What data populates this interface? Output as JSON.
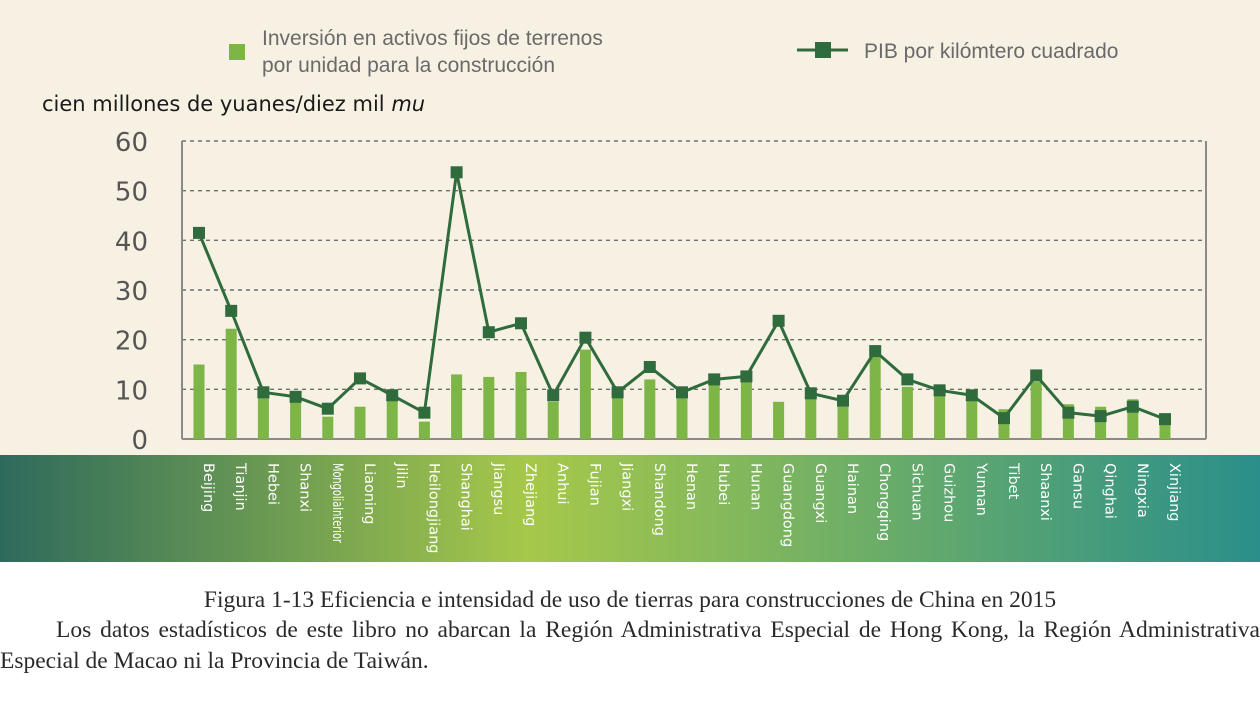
{
  "legend": {
    "bar_label_line1": "Inversión en activos fijos de terrenos",
    "bar_label_line2": "por unidad para la construcción",
    "line_label": "PIB por kilómtero cuadrado"
  },
  "unit_label_prefix": "cien millones de yuanes/diez mil ",
  "unit_label_italic": "mu",
  "caption": {
    "title": "Figura 1-13 Eficiencia e intensidad de uso de tierras para construcciones de China en 2015",
    "note": "Los datos estadísticos de este libro no abarcan la Región Administrativa Especial de Hong Kong, la Región Administrativa Especial de Macao ni la Provincia de Taiwán."
  },
  "colors": {
    "bar": "#7db547",
    "line": "#2f6b3c",
    "background": "#f7f1e3",
    "band_left": "#2e6a5c",
    "band_mid": "#a6c84a",
    "band_right": "#2a8f8a"
  },
  "chart_data": {
    "type": "bar+line",
    "ylim": [
      0,
      60
    ],
    "yticks": [
      0,
      10,
      20,
      30,
      40,
      50,
      60
    ],
    "grid": "dashed horizontal",
    "legend_position": "top",
    "categories": [
      "Beijing",
      "Tianjin",
      "Hebei",
      "Shanxi",
      "MongoliaInterior",
      "Liaoning",
      "Jilin",
      "Heilongjiang",
      "Shanghai",
      "Jiangsu",
      "Zhejiang",
      "Anhui",
      "Fujian",
      "Jiangxi",
      "Shandong",
      "Henan",
      "Hubei",
      "Hunan",
      "Guangdong",
      "Guangxi",
      "Hainan",
      "Chongqing",
      "Sichuan",
      "Guizhou",
      "Yunnan",
      "Tibet",
      "Shaanxi",
      "Gansu",
      "Qinghai",
      "Ningxia",
      "Xinjiang"
    ],
    "series": [
      {
        "name": "Inversión en activos fijos de terrenos por unidad para la construcción",
        "type": "bar",
        "values": [
          15,
          22.2,
          9,
          7.5,
          4.5,
          6.5,
          10,
          3.5,
          13,
          12.5,
          13.5,
          7.5,
          18,
          9,
          12,
          8.5,
          11,
          11.5,
          7.5,
          8.5,
          6.5,
          16.5,
          10.5,
          9,
          9.5,
          6,
          11.5,
          7,
          6.5,
          8,
          3
        ]
      },
      {
        "name": "PIB por kilómtero cuadrado",
        "type": "line",
        "values": [
          41.5,
          25.8,
          9.4,
          8.5,
          6.1,
          12.2,
          8.8,
          5.3,
          53.7,
          21.5,
          23.3,
          8.8,
          20.4,
          9.4,
          14.5,
          9.4,
          12,
          12.6,
          23.8,
          9.2,
          7.7,
          17.7,
          12,
          9.8,
          8.8,
          4.2,
          12.8,
          5.3,
          4.6,
          6.5,
          4
        ]
      }
    ]
  }
}
